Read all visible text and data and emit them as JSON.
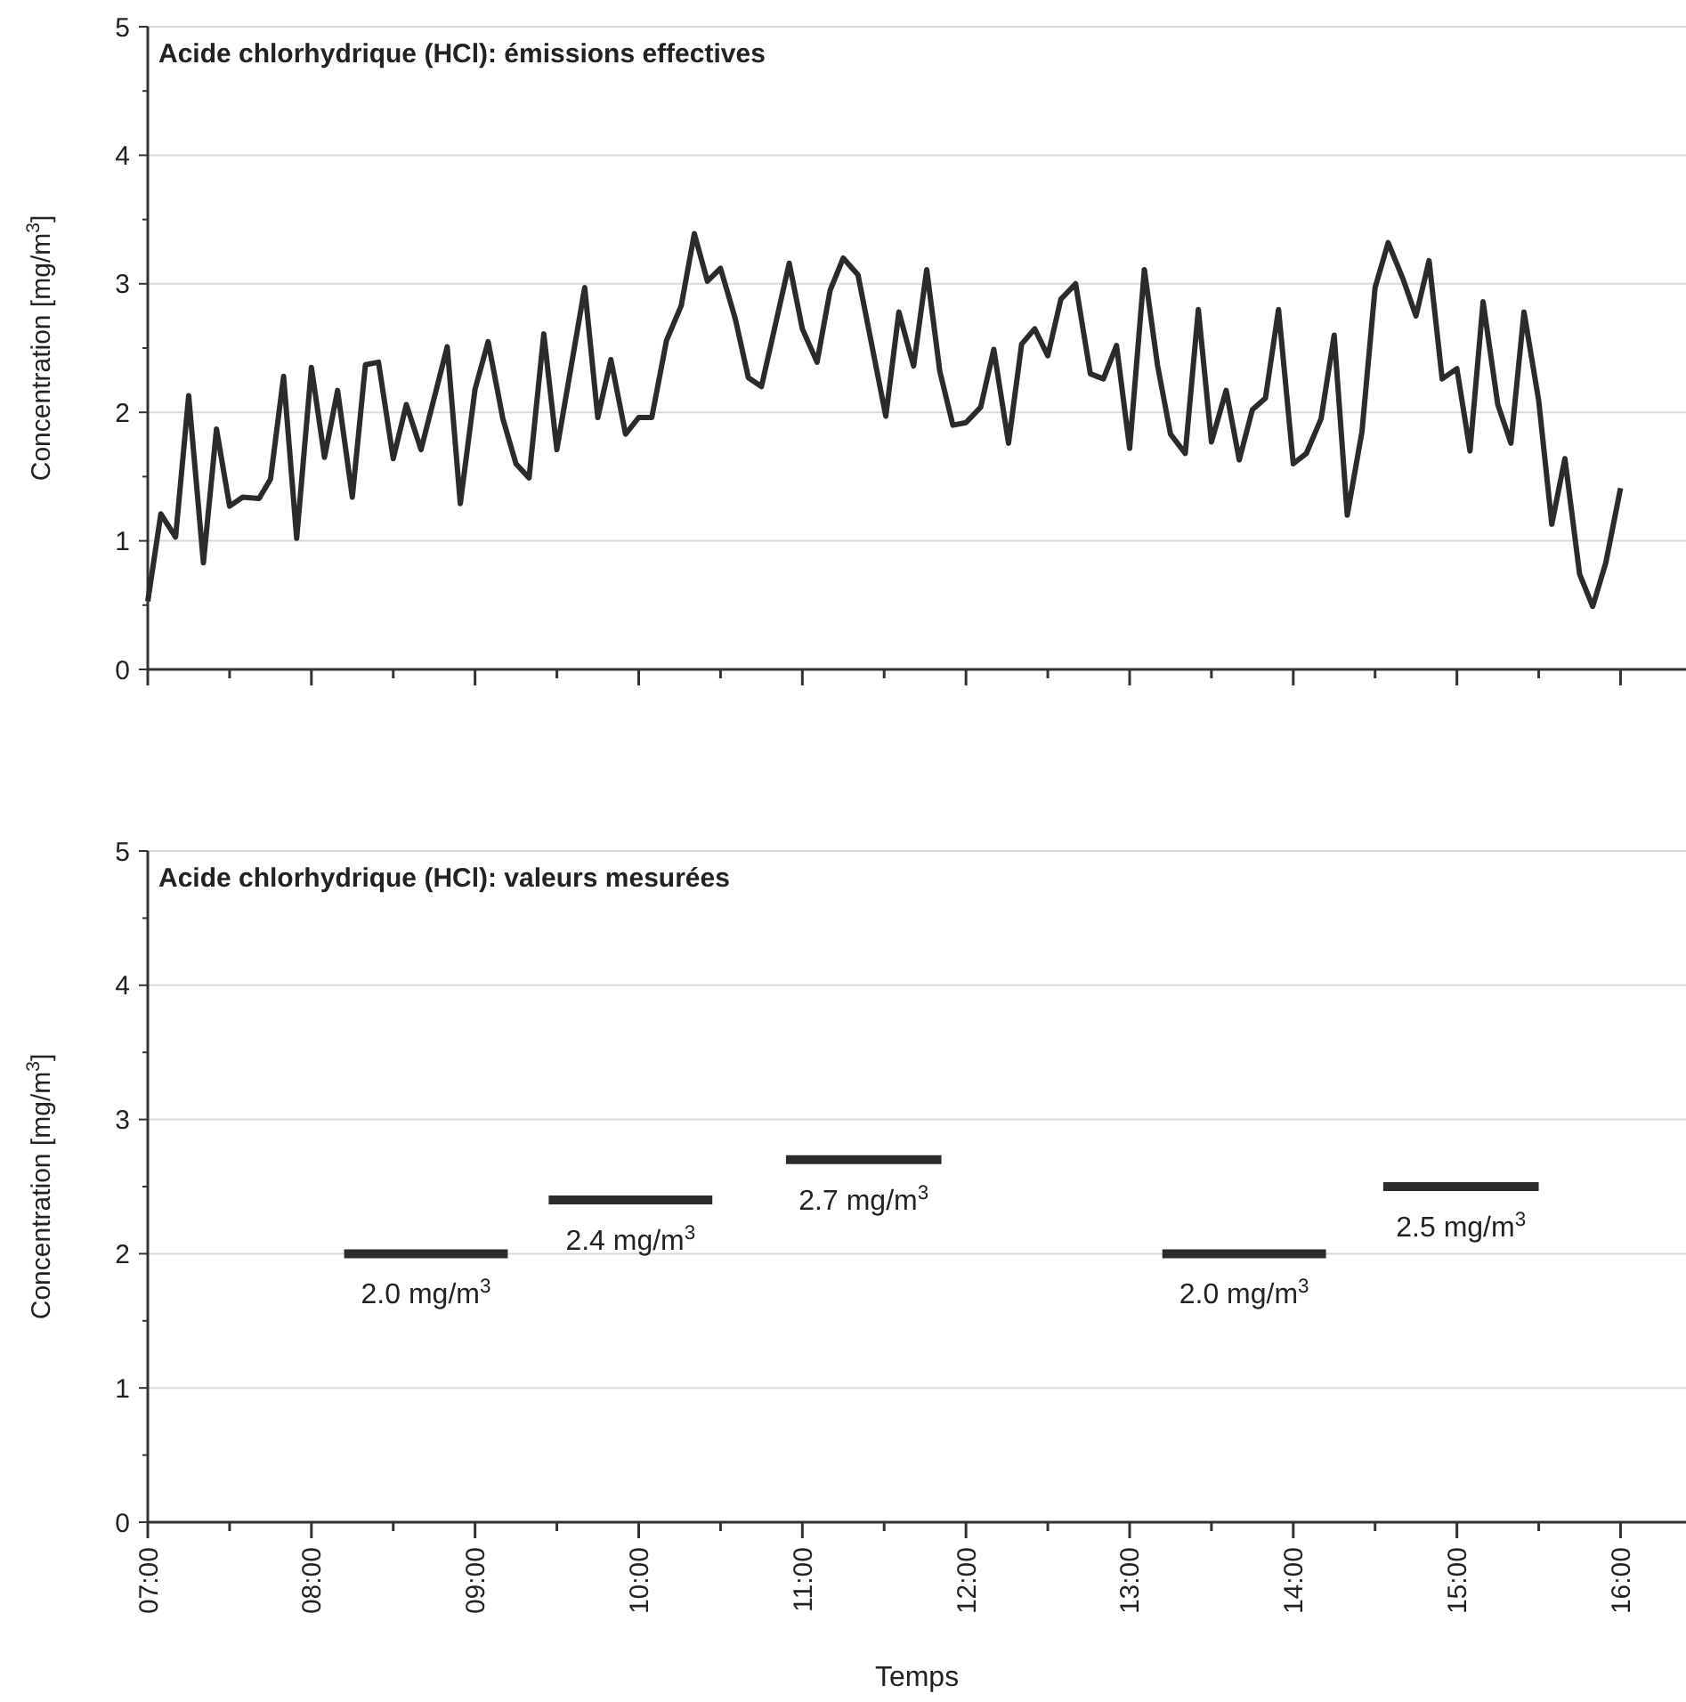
{
  "chart_data": [
    {
      "type": "line",
      "title": "Acide chlorhydrique (HCl): émissions effectives",
      "ylabel": "Concentration [mg/m$^{3}$]",
      "tick_labels": "y",
      "grid": "y",
      "xlim": [
        7,
        16.4
      ],
      "xticks": [
        {
          "value": 7,
          "label": null
        },
        {
          "value": 7.5,
          "label": null
        },
        {
          "value": 8,
          "label": null
        },
        {
          "value": 8.5,
          "label": null
        },
        {
          "value": 9,
          "label": null
        },
        {
          "value": 9.5,
          "label": null
        },
        {
          "value": 10,
          "label": null
        },
        {
          "value": 10.5,
          "label": null
        },
        {
          "value": 11,
          "label": null
        },
        {
          "value": 11.5,
          "label": null
        },
        {
          "value": 12,
          "label": null
        },
        {
          "value": 12.5,
          "label": null
        },
        {
          "value": 13,
          "label": null
        },
        {
          "value": 13.5,
          "label": null
        },
        {
          "value": 14,
          "label": null
        },
        {
          "value": 14.5,
          "label": null
        },
        {
          "value": 15,
          "label": null
        },
        {
          "value": 15.5,
          "label": null
        },
        {
          "value": 16,
          "label": null
        }
      ],
      "ylim": [
        0,
        5
      ],
      "yticks": [
        0,
        {
          "value": 0.5,
          "label": null
        },
        1,
        {
          "value": 1.5,
          "label": null
        },
        2,
        {
          "value": 2.5,
          "label": null
        },
        3,
        {
          "value": 3.5,
          "label": null
        },
        4,
        {
          "value": 4.5,
          "label": null
        },
        5
      ],
      "series": [
        {
          "color": "#2b2b2b",
          "x": [
            7.0,
            7.08,
            7.17,
            7.25,
            7.34,
            7.42,
            7.5,
            7.58,
            7.68,
            7.75,
            7.83,
            7.91,
            8.0,
            8.08,
            8.16,
            8.25,
            8.33,
            8.41,
            8.5,
            8.58,
            8.67,
            8.83,
            8.91,
            9.0,
            9.08,
            9.17,
            9.25,
            9.33,
            9.42,
            9.5,
            9.67,
            9.75,
            9.83,
            9.92,
            10.0,
            10.08,
            10.17,
            10.26,
            10.34,
            10.42,
            10.5,
            10.59,
            10.67,
            10.75,
            10.92,
            11.0,
            11.09,
            11.17,
            11.25,
            11.34,
            11.51,
            11.59,
            11.68,
            11.76,
            11.84,
            11.92,
            12.0,
            12.09,
            12.17,
            12.26,
            12.34,
            12.42,
            12.5,
            12.58,
            12.67,
            12.76,
            12.84,
            12.92,
            13.0,
            13.09,
            13.17,
            13.25,
            13.34,
            13.42,
            13.5,
            13.59,
            13.67,
            13.75,
            13.83,
            13.91,
            14.0,
            14.08,
            14.17,
            14.25,
            14.33,
            14.42,
            14.5,
            14.58,
            14.67,
            14.75,
            14.83,
            14.91,
            15.0,
            15.08,
            15.16,
            15.25,
            15.33,
            15.41,
            15.5,
            15.58,
            15.66,
            15.75,
            15.83,
            15.91,
            16.0
          ],
          "values": [
            0.53,
            1.21,
            1.03,
            2.13,
            0.83,
            1.87,
            1.27,
            1.34,
            1.33,
            1.48,
            2.28,
            1.02,
            2.35,
            1.65,
            2.17,
            1.34,
            2.37,
            2.39,
            1.64,
            2.06,
            1.71,
            2.51,
            1.29,
            2.18,
            2.55,
            1.95,
            1.6,
            1.49,
            2.61,
            1.71,
            2.97,
            1.96,
            2.41,
            1.83,
            1.96,
            1.96,
            2.56,
            2.83,
            3.39,
            3.02,
            3.12,
            2.73,
            2.27,
            2.2,
            3.16,
            2.65,
            2.39,
            2.95,
            3.2,
            3.07,
            1.97,
            2.78,
            2.36,
            3.11,
            2.32,
            1.9,
            1.92,
            2.04,
            2.49,
            1.76,
            2.53,
            2.65,
            2.44,
            2.88,
            3.0,
            2.3,
            2.26,
            2.52,
            1.72,
            3.11,
            2.37,
            1.83,
            1.68,
            2.8,
            1.77,
            2.17,
            1.63,
            2.02,
            2.11,
            2.8,
            1.6,
            1.68,
            1.95,
            2.6,
            1.2,
            1.85,
            2.97,
            3.32,
            3.04,
            2.75,
            3.18,
            2.26,
            2.34,
            1.7,
            2.86,
            2.06,
            1.76,
            2.78,
            2.09,
            1.13,
            1.64,
            0.74,
            0.49,
            0.83,
            1.41
          ]
        }
      ]
    },
    {
      "type": "line",
      "title": "Acide chlorhydrique (HCl): valeurs mesurées",
      "ylabel": "Concentration [mg/m$^{3}$]",
      "xlabel": "Temps",
      "grid": "y",
      "xlim": [
        7,
        16.4
      ],
      "xticks": [
        {
          "value": 7,
          "label": "07:00"
        },
        {
          "value": 7.5,
          "label": null
        },
        {
          "value": 8,
          "label": "08:00"
        },
        {
          "value": 8.5,
          "label": null
        },
        {
          "value": 9,
          "label": "09:00"
        },
        {
          "value": 9.5,
          "label": null
        },
        {
          "value": 10,
          "label": "10:00"
        },
        {
          "value": 10.5,
          "label": null
        },
        {
          "value": 11,
          "label": "11:00"
        },
        {
          "value": 11.5,
          "label": null
        },
        {
          "value": 12,
          "label": "12:00"
        },
        {
          "value": 12.5,
          "label": null
        },
        {
          "value": 13,
          "label": "13:00"
        },
        {
          "value": 13.5,
          "label": null
        },
        {
          "value": 14,
          "label": "14:00"
        },
        {
          "value": 14.5,
          "label": null
        },
        {
          "value": 15,
          "label": "15:00"
        },
        {
          "value": 15.5,
          "label": null
        },
        {
          "value": 16,
          "label": "16:00"
        }
      ],
      "ylim": [
        0,
        5
      ],
      "yticks": [
        0,
        {
          "value": 0.5,
          "label": null
        },
        1,
        {
          "value": 1.5,
          "label": null
        },
        2,
        {
          "value": 2.5,
          "label": null
        },
        3,
        {
          "value": 3.5,
          "label": null
        },
        4,
        {
          "value": 4.5,
          "label": null
        },
        5
      ],
      "series": [
        {
          "color": "#2b2b2b",
          "x": [
            8.2,
            9.2
          ],
          "values": [
            2.0,
            2.0
          ]
        },
        {
          "color": "#2b2b2b",
          "x": [
            9.45,
            10.45
          ],
          "values": [
            2.4,
            2.4
          ]
        },
        {
          "color": "#2b2b2b",
          "x": [
            10.9,
            11.85
          ],
          "values": [
            2.7,
            2.7
          ]
        },
        {
          "color": "#2b2b2b",
          "x": [
            13.2,
            14.2
          ],
          "values": [
            2.0,
            2.0
          ]
        },
        {
          "color": "#2b2b2b",
          "x": [
            14.55,
            15.5
          ],
          "values": [
            2.5,
            2.5
          ]
        }
      ],
      "annotations": [
        {
          "text": "2.0 mg/m$^{3}$",
          "x": 8.7,
          "y": 2.0
        },
        {
          "text": "2.4 mg/m$^{3}$",
          "x": 9.95,
          "y": 2.4
        },
        {
          "text": "2.7 mg/m$^{3}$",
          "x": 11.375,
          "y": 2.7
        },
        {
          "text": "2.0 mg/m$^{3}$",
          "x": 13.7,
          "y": 2.0
        },
        {
          "text": "2.5 mg/m$^{3}$",
          "x": 15.025,
          "y": 2.5
        }
      ]
    }
  ]
}
